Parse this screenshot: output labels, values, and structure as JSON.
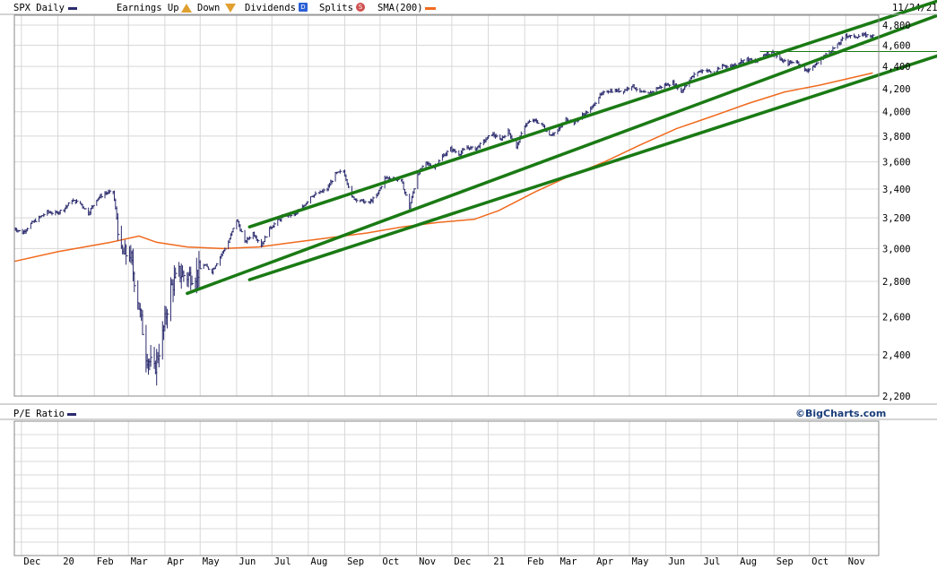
{
  "header": {
    "symbol_label": "SPX Daily",
    "earnings_label": "Earnings Up",
    "down_label": "Down",
    "dividends_label": "Dividends",
    "splits_label": "Splits",
    "sma_label": "SMA(200)",
    "date": "11/24/21",
    "colors": {
      "price": "#2b2b6e",
      "sma": "#f06a1e",
      "trend": "#1a7a14",
      "earnings": "#e0a030",
      "dividends": "#2a5fd6",
      "splits": "#d05050"
    }
  },
  "lower_panel": {
    "label": "P/E Ratio",
    "brand": "©BigCharts.com"
  },
  "chart_data": {
    "type": "line",
    "title": "SPX Daily",
    "y_scale": "log",
    "ylim": [
      2200,
      4900
    ],
    "y_ticks": [
      "4,800",
      "4,600",
      "4,400",
      "4,200",
      "4,000",
      "3,800",
      "3,600",
      "3,400",
      "3,200",
      "3,000",
      "2,800",
      "2,600",
      "2,400",
      "2,200"
    ],
    "x_tick_labels": [
      "Dec",
      "20",
      "Feb",
      "Mar",
      "Apr",
      "May",
      "Jun",
      "Jul",
      "Aug",
      "Sep",
      "Oct",
      "Nov",
      "Dec",
      "21",
      "Feb",
      "Mar",
      "Apr",
      "May",
      "Jun",
      "Jul",
      "Aug",
      "Sep",
      "Oct",
      "Nov"
    ],
    "x_dates": [
      "2019-12-01",
      "2020-01-01",
      "2020-02-01",
      "2020-03-01",
      "2020-04-01",
      "2020-05-01",
      "2020-06-01",
      "2020-07-01",
      "2020-08-01",
      "2020-09-01",
      "2020-10-01",
      "2020-11-01",
      "2020-12-01",
      "2021-01-01",
      "2021-02-01",
      "2021-03-01",
      "2021-04-01",
      "2021-05-01",
      "2021-06-01",
      "2021-07-01",
      "2021-08-01",
      "2021-09-01",
      "2021-10-01",
      "2021-11-01"
    ],
    "series": [
      {
        "name": "SPX",
        "style": "ohlc",
        "points": [
          [
            "2019-11-25",
            3130
          ],
          [
            "2019-12-02",
            3100
          ],
          [
            "2019-12-09",
            3160
          ],
          [
            "2019-12-16",
            3200
          ],
          [
            "2019-12-23",
            3240
          ],
          [
            "2019-12-30",
            3230
          ],
          [
            "2020-01-06",
            3260
          ],
          [
            "2020-01-13",
            3320
          ],
          [
            "2020-01-20",
            3300
          ],
          [
            "2020-01-27",
            3230
          ],
          [
            "2020-02-03",
            3330
          ],
          [
            "2020-02-10",
            3370
          ],
          [
            "2020-02-17",
            3380
          ],
          [
            "2020-02-24",
            2960
          ],
          [
            "2020-03-02",
            2970
          ],
          [
            "2020-03-09",
            2700
          ],
          [
            "2020-03-16",
            2400
          ],
          [
            "2020-03-23",
            2320
          ],
          [
            "2020-03-30",
            2500
          ],
          [
            "2020-04-06",
            2760
          ],
          [
            "2020-04-13",
            2850
          ],
          [
            "2020-04-20",
            2830
          ],
          [
            "2020-04-27",
            2840
          ],
          [
            "2020-05-04",
            2900
          ],
          [
            "2020-05-11",
            2860
          ],
          [
            "2020-05-18",
            2950
          ],
          [
            "2020-05-25",
            3040
          ],
          [
            "2020-06-01",
            3190
          ],
          [
            "2020-06-08",
            3040
          ],
          [
            "2020-06-15",
            3100
          ],
          [
            "2020-06-22",
            3020
          ],
          [
            "2020-06-29",
            3130
          ],
          [
            "2020-07-06",
            3180
          ],
          [
            "2020-07-13",
            3220
          ],
          [
            "2020-07-20",
            3220
          ],
          [
            "2020-07-27",
            3270
          ],
          [
            "2020-08-03",
            3350
          ],
          [
            "2020-08-10",
            3370
          ],
          [
            "2020-08-17",
            3400
          ],
          [
            "2020-08-24",
            3510
          ],
          [
            "2020-08-31",
            3530
          ],
          [
            "2020-09-07",
            3340
          ],
          [
            "2020-09-14",
            3320
          ],
          [
            "2020-09-21",
            3300
          ],
          [
            "2020-09-28",
            3350
          ],
          [
            "2020-10-05",
            3480
          ],
          [
            "2020-10-12",
            3480
          ],
          [
            "2020-10-19",
            3460
          ],
          [
            "2020-10-26",
            3270
          ],
          [
            "2020-11-02",
            3510
          ],
          [
            "2020-11-09",
            3590
          ],
          [
            "2020-11-16",
            3560
          ],
          [
            "2020-11-23",
            3640
          ],
          [
            "2020-11-30",
            3700
          ],
          [
            "2020-12-07",
            3660
          ],
          [
            "2020-12-14",
            3710
          ],
          [
            "2020-12-21",
            3700
          ],
          [
            "2020-12-28",
            3756
          ],
          [
            "2021-01-04",
            3820
          ],
          [
            "2021-01-11",
            3770
          ],
          [
            "2021-01-18",
            3840
          ],
          [
            "2021-01-25",
            3710
          ],
          [
            "2021-02-01",
            3890
          ],
          [
            "2021-02-08",
            3930
          ],
          [
            "2021-02-15",
            3900
          ],
          [
            "2021-02-22",
            3810
          ],
          [
            "2021-03-01",
            3840
          ],
          [
            "2021-03-08",
            3940
          ],
          [
            "2021-03-15",
            3910
          ],
          [
            "2021-03-22",
            3970
          ],
          [
            "2021-03-29",
            4020
          ],
          [
            "2021-04-05",
            4130
          ],
          [
            "2021-04-12",
            4180
          ],
          [
            "2021-04-19",
            4180
          ],
          [
            "2021-04-26",
            4180
          ],
          [
            "2021-05-03",
            4230
          ],
          [
            "2021-05-10",
            4170
          ],
          [
            "2021-05-17",
            4150
          ],
          [
            "2021-05-24",
            4200
          ],
          [
            "2021-05-31",
            4230
          ],
          [
            "2021-06-07",
            4250
          ],
          [
            "2021-06-14",
            4170
          ],
          [
            "2021-06-21",
            4280
          ],
          [
            "2021-06-28",
            4350
          ],
          [
            "2021-07-05",
            4370
          ],
          [
            "2021-07-12",
            4330
          ],
          [
            "2021-07-19",
            4410
          ],
          [
            "2021-07-26",
            4400
          ],
          [
            "2021-08-02",
            4440
          ],
          [
            "2021-08-09",
            4470
          ],
          [
            "2021-08-16",
            4440
          ],
          [
            "2021-08-23",
            4510
          ],
          [
            "2021-08-30",
            4540
          ],
          [
            "2021-09-06",
            4460
          ],
          [
            "2021-09-13",
            4430
          ],
          [
            "2021-09-20",
            4450
          ],
          [
            "2021-09-27",
            4360
          ],
          [
            "2021-10-04",
            4390
          ],
          [
            "2021-10-11",
            4470
          ],
          [
            "2021-10-18",
            4540
          ],
          [
            "2021-10-25",
            4600
          ],
          [
            "2021-11-01",
            4700
          ],
          [
            "2021-11-08",
            4680
          ],
          [
            "2021-11-15",
            4700
          ],
          [
            "2021-11-24",
            4690
          ]
        ]
      },
      {
        "name": "SMA(200)",
        "style": "line",
        "points": [
          [
            "2019-11-25",
            2920
          ],
          [
            "2020-01-01",
            2980
          ],
          [
            "2020-02-15",
            3040
          ],
          [
            "2020-03-10",
            3080
          ],
          [
            "2020-03-25",
            3040
          ],
          [
            "2020-04-20",
            3010
          ],
          [
            "2020-05-20",
            3000
          ],
          [
            "2020-06-20",
            3010
          ],
          [
            "2020-07-20",
            3040
          ],
          [
            "2020-08-20",
            3070
          ],
          [
            "2020-09-20",
            3100
          ],
          [
            "2020-10-20",
            3140
          ],
          [
            "2020-11-20",
            3170
          ],
          [
            "2020-12-20",
            3190
          ],
          [
            "2021-01-10",
            3250
          ],
          [
            "2021-02-10",
            3380
          ],
          [
            "2021-03-10",
            3490
          ],
          [
            "2021-04-10",
            3600
          ],
          [
            "2021-05-10",
            3730
          ],
          [
            "2021-06-10",
            3860
          ],
          [
            "2021-07-10",
            3960
          ],
          [
            "2021-08-10",
            4070
          ],
          [
            "2021-09-10",
            4170
          ],
          [
            "2021-10-10",
            4230
          ],
          [
            "2021-11-24",
            4340
          ]
        ]
      }
    ],
    "annotations": {
      "trend_lines": [
        {
          "from": [
            "2020-04-20",
            2730
          ],
          "to": [
            "2021-11-29",
            4900
          ]
        },
        {
          "from": [
            "2020-06-12",
            3140
          ],
          "to": [
            "2021-11-29",
            5050
          ]
        },
        {
          "from": [
            "2020-06-12",
            2810
          ],
          "to": [
            "2021-11-29",
            4500
          ]
        }
      ],
      "horizontal_line": 4540
    },
    "lower_panel": {
      "name": "P/E Ratio"
    }
  }
}
